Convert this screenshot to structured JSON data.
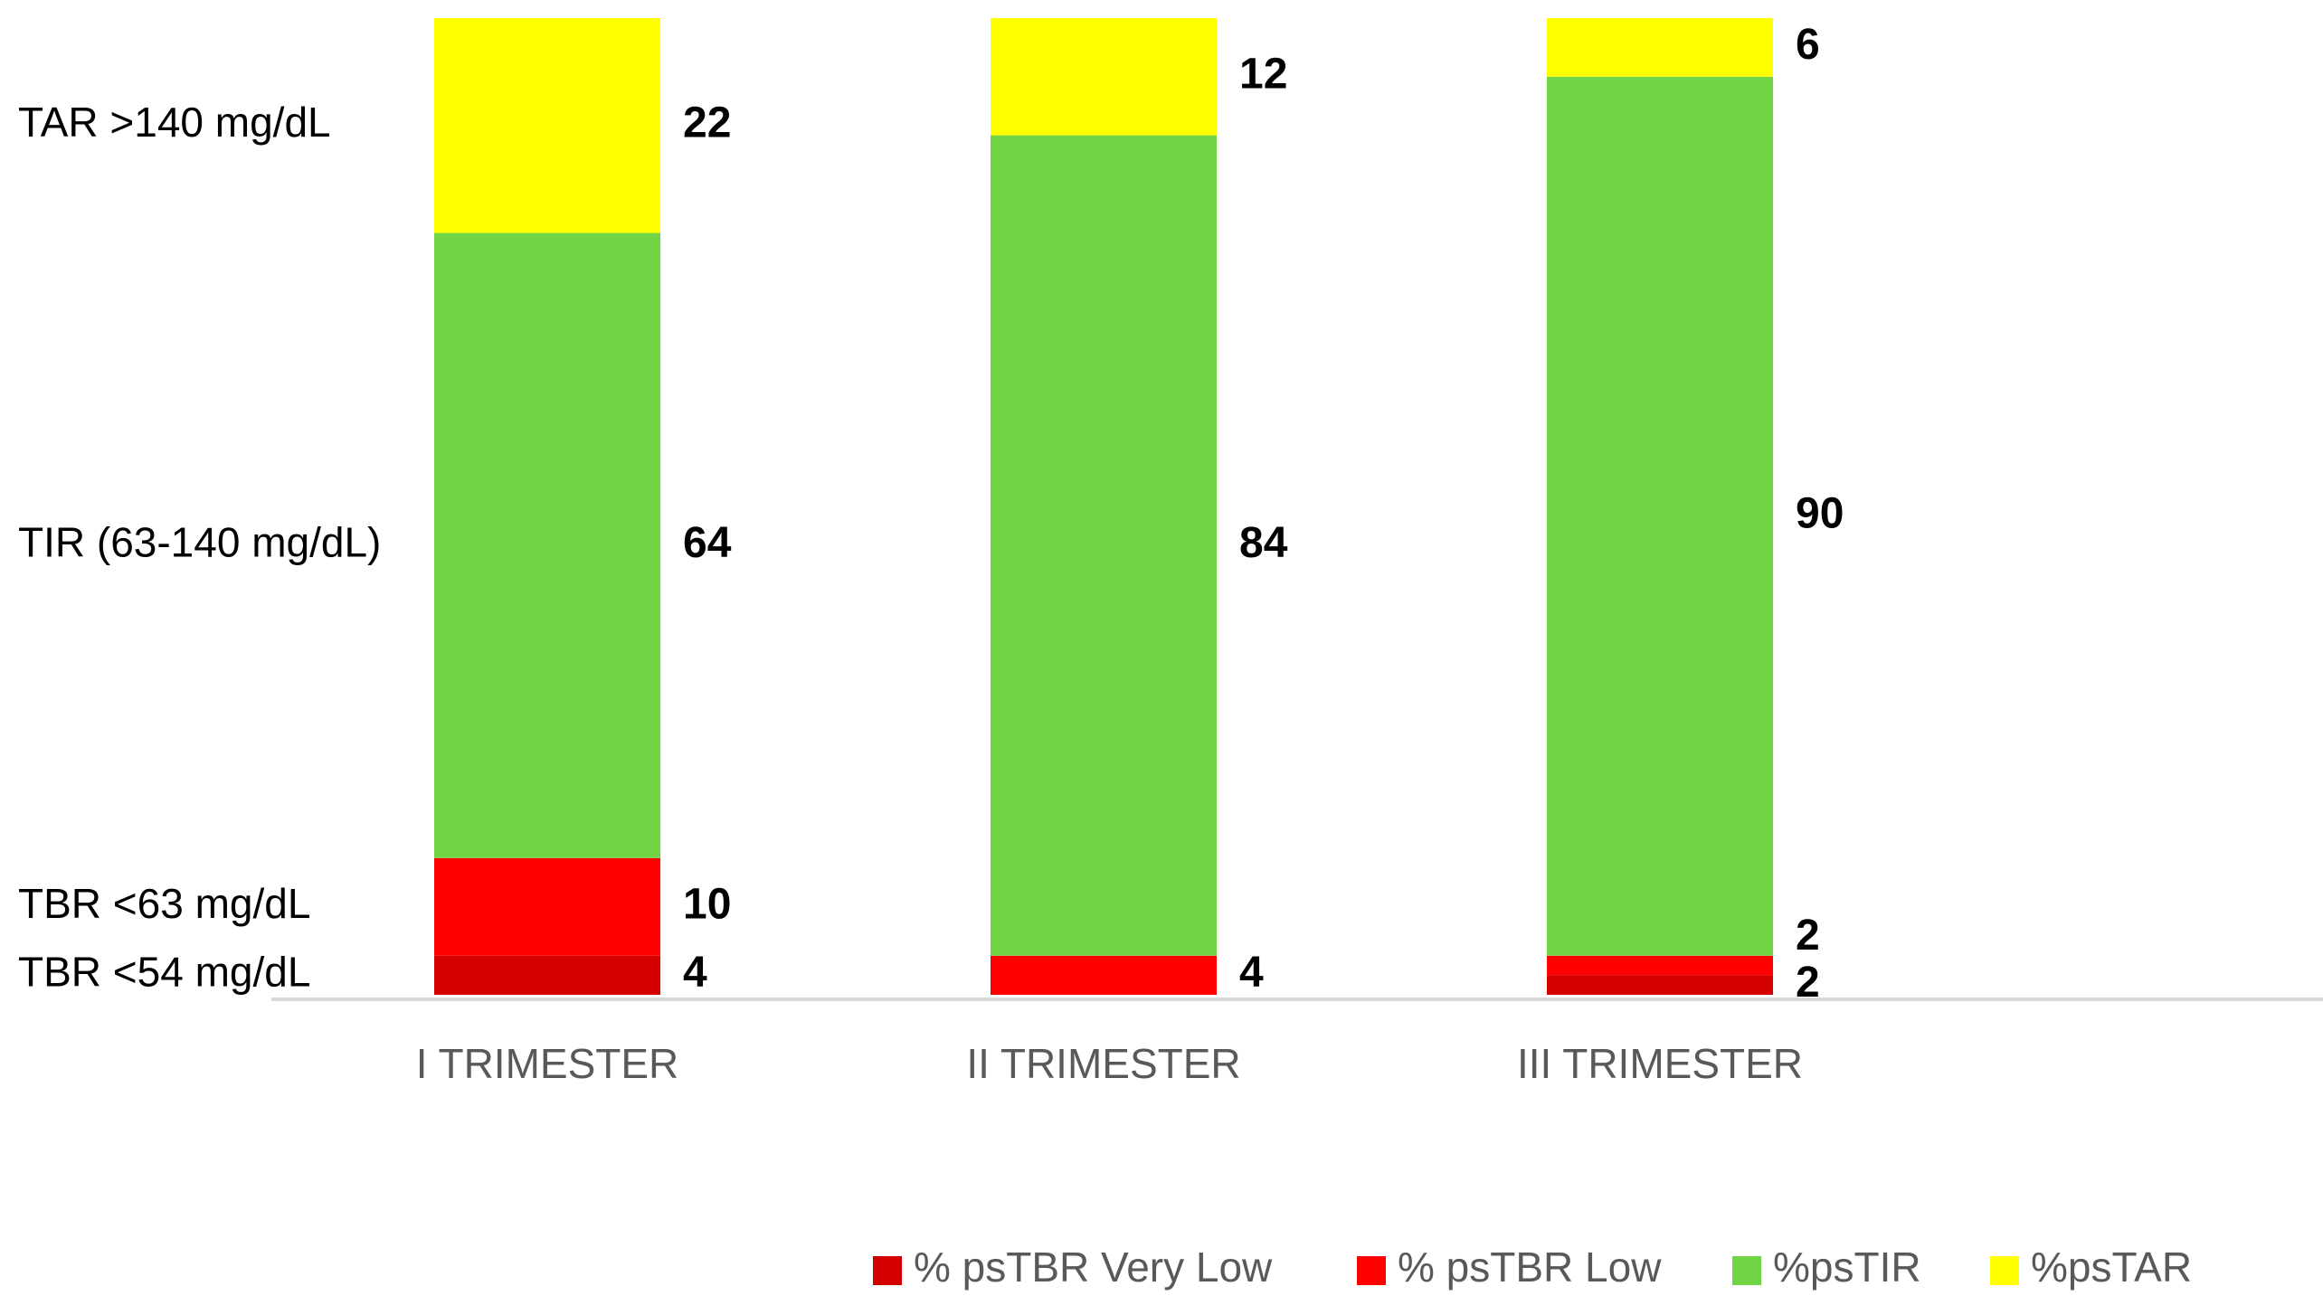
{
  "chart_data": {
    "type": "bar",
    "stacked": true,
    "categories": [
      "I TRIMESTER",
      "II TRIMESTER",
      "III TRIMESTER"
    ],
    "ylim": [
      0,
      100
    ],
    "grid": false,
    "legend_position": "bottom-right",
    "series": [
      {
        "name": "% psTBR Very Low",
        "color": "#d40000",
        "values": [
          4,
          0,
          2
        ]
      },
      {
        "name": "% psTBR Low",
        "color": "#ff0000",
        "values": [
          10,
          4,
          2
        ]
      },
      {
        "name": "%psTIR",
        "color": "#70d444",
        "values": [
          64,
          84,
          90
        ]
      },
      {
        "name": "%psTAR",
        "color": "#ffff00",
        "values": [
          22,
          12,
          6
        ]
      }
    ],
    "range_labels": [
      {
        "text": "TAR >140 mg/dL",
        "series_index": 3,
        "category_index": 0
      },
      {
        "text": "TIR (63-140 mg/dL)",
        "series_index": 2,
        "category_index": 0
      },
      {
        "text": "TBR <63 mg/dL",
        "series_index": 1,
        "category_index": 0
      },
      {
        "text": "TBR <54 mg/dL",
        "series_index": 0,
        "category_index": 0
      }
    ],
    "data_labels": [
      {
        "category_index": 0,
        "series_index": 3,
        "text": "22"
      },
      {
        "category_index": 0,
        "series_index": 2,
        "text": "64"
      },
      {
        "category_index": 0,
        "series_index": 1,
        "text": "10"
      },
      {
        "category_index": 0,
        "series_index": 0,
        "text": "4"
      },
      {
        "category_index": 1,
        "series_index": 3,
        "text": "12"
      },
      {
        "category_index": 1,
        "series_index": 2,
        "text": "84"
      },
      {
        "category_index": 1,
        "series_index": 1,
        "text": "4"
      },
      {
        "category_index": 2,
        "series_index": 3,
        "text": "6"
      },
      {
        "category_index": 2,
        "series_index": 2,
        "text": "90"
      },
      {
        "category_index": 2,
        "series_index": 1,
        "text": "2"
      },
      {
        "category_index": 2,
        "series_index": 0,
        "text": "2"
      }
    ]
  }
}
